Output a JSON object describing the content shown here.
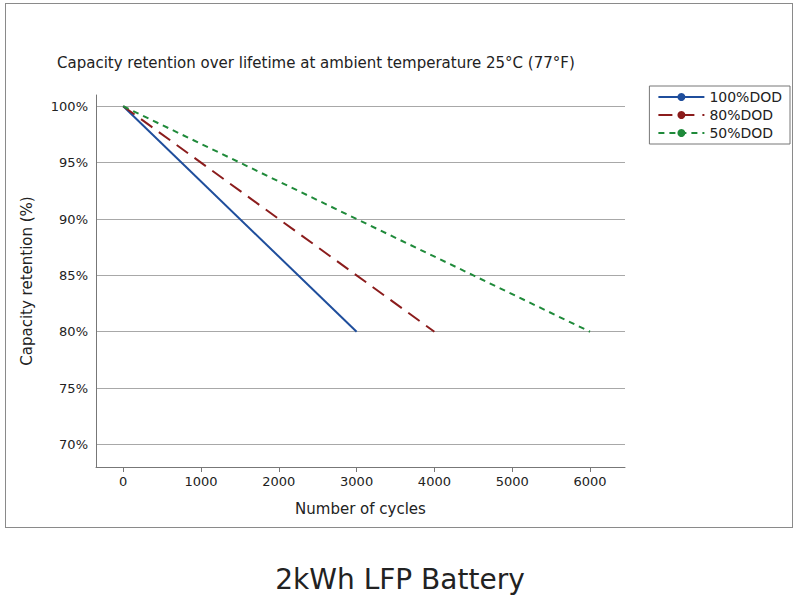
{
  "chart_data": {
    "type": "line",
    "title": "Capacity retention over lifetime at ambient temperature 25°C (77°F)",
    "caption": "2kWh LFP Battery",
    "x_label": "Number of cycles",
    "y_label": "Capacity retention (%)",
    "series": [
      {
        "name": "100%DOD",
        "color": "#1f4e9c",
        "line_style": "solid",
        "x": [
          0,
          3000
        ],
        "values": [
          100,
          80
        ]
      },
      {
        "name": "80%DOD",
        "color": "#8b1c1c",
        "line_style": "dashed",
        "x": [
          0,
          4000
        ],
        "values": [
          100,
          80
        ]
      },
      {
        "name": "50%DOD",
        "color": "#1f8a3a",
        "line_style": "short_dashed",
        "x": [
          0,
          6000
        ],
        "values": [
          100,
          80
        ]
      }
    ],
    "xlim": [
      -350,
      6450
    ],
    "xticks": [
      0,
      1000,
      2000,
      3000,
      4000,
      5000,
      6000
    ],
    "ylim": [
      68,
      101
    ],
    "yticks": [
      {
        "value": 70,
        "label": "70%"
      },
      {
        "value": 75,
        "label": "75%"
      },
      {
        "value": 80,
        "label": "80%"
      },
      {
        "value": 85,
        "label": "85%"
      },
      {
        "value": 90,
        "label": "90%"
      },
      {
        "value": 95,
        "label": "95%"
      },
      {
        "value": 100,
        "label": "100%"
      }
    ],
    "grid": "y",
    "legend": "upper right"
  }
}
